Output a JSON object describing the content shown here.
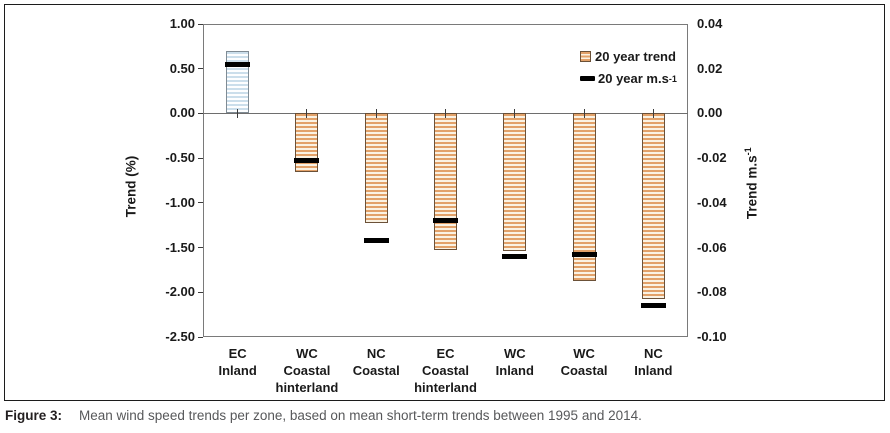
{
  "caption": {
    "label": "Figure 3:",
    "text": "Mean wind speed trends per zone, based on mean short-term trends between 1995 and 2014."
  },
  "chart_data": {
    "type": "bar",
    "title": "",
    "categories": [
      [
        "EC",
        "Inland"
      ],
      [
        "WC",
        "Coastal",
        "hinterland"
      ],
      [
        "NC",
        "Coastal"
      ],
      [
        "EC",
        "Coastal",
        "hinterland"
      ],
      [
        "WC",
        "Inland"
      ],
      [
        "WC",
        "Coastal"
      ],
      [
        "NC",
        "Inland"
      ]
    ],
    "series": [
      {
        "name": "20 year trend",
        "unit": "%",
        "type": "bar",
        "values": [
          0.7,
          -0.66,
          -1.22,
          -1.53,
          -1.54,
          -1.87,
          -2.08
        ]
      },
      {
        "name": "20 year m.s-1",
        "unit": "m.s-1",
        "type": "dash-marker",
        "values": [
          0.022,
          -0.021,
          -0.057,
          -0.048,
          -0.064,
          -0.063,
          -0.086
        ]
      }
    ],
    "left_axis": {
      "label": "Trend (%)",
      "min": -2.5,
      "max": 1.0,
      "ticks": [
        "1.00",
        "0.50",
        "0.00",
        "-0.50",
        "-1.00",
        "-1.50",
        "-2.00",
        "-2.50"
      ]
    },
    "right_axis": {
      "label": {
        "text": "Trend m.s",
        "sup": "-1"
      },
      "min": -0.1,
      "max": 0.04,
      "ticks": [
        "0.04",
        "0.02",
        "0.00",
        "-0.02",
        "-0.04",
        "-0.06",
        "-0.08",
        "-0.10"
      ]
    },
    "legend": [
      {
        "text": "20 year trend",
        "sup": ""
      },
      {
        "text": "20 year m.s",
        "sup": "-1"
      }
    ],
    "layout": {
      "grid": false,
      "legend_position": "upper-right-inside"
    },
    "colors": {
      "bar_negative_stripe": "#e2a169",
      "bar_negative_bg": "#faf2e3",
      "bar_negative_border": "#6b5138",
      "bar_positive_stripe": "#cbdeeb",
      "bar_positive_border": "#7f8b94",
      "dash_marker": "#000000",
      "caption_text": "#57585a"
    }
  }
}
